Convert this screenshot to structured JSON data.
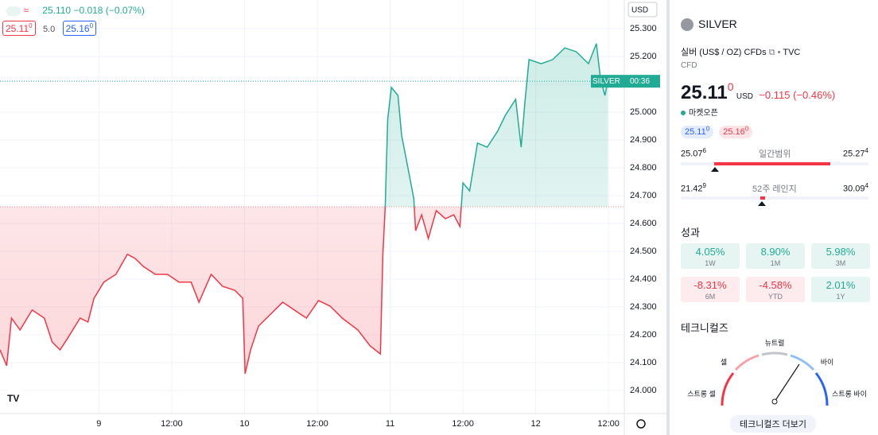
{
  "header": {
    "quote": "25.110",
    "change": "−0.018 (−0.07%)",
    "bid": {
      "main": "25.11",
      "sup": "0"
    },
    "spread": "5.0",
    "ask": {
      "main": "25.16",
      "sup": "0"
    },
    "currency": "USD"
  },
  "chart_data": {
    "type": "line",
    "baseline": 24.66,
    "x": [
      -16.3,
      -15.2,
      -14.4,
      -13.0,
      -11.0,
      -9.0,
      -7.7,
      -6.4,
      -5.1,
      -3.1,
      -1.8,
      -0.8,
      0.8,
      2.8,
      4.7,
      6.0,
      7.3,
      9.3,
      11.3,
      13.2,
      15.2,
      16.5,
      18.5,
      20.4,
      22.4,
      23.7,
      24.1,
      25.0,
      26.3,
      28.3,
      30.3,
      32.2,
      34.2,
      36.2,
      38.1,
      40.1,
      42.7,
      44.7,
      46.4,
      46.8,
      47.2,
      47.6,
      48.2,
      49.3,
      49.9,
      50.9,
      51.9,
      52.2,
      53.2,
      54.3,
      55.6,
      57.1,
      58.5,
      59.5,
      60.0,
      61.1,
      62.4,
      64.0,
      65.7,
      67.0,
      68.7,
      69.6,
      70.2,
      70.9,
      72.9,
      74.8,
      76.8,
      78.7,
      80.7,
      82.0,
      82.7,
      83.4,
      83.9
    ],
    "series": [
      {
        "name": "SILVER",
        "color_up": "#22ab94",
        "color_down": "#f23645",
        "values": [
          24.146,
          24.089,
          24.26,
          24.217,
          24.289,
          24.26,
          24.174,
          24.146,
          24.189,
          24.26,
          24.246,
          24.331,
          24.389,
          24.417,
          24.489,
          24.474,
          24.446,
          24.417,
          24.417,
          24.389,
          24.389,
          24.317,
          24.417,
          24.374,
          24.36,
          24.331,
          24.06,
          24.146,
          24.231,
          24.274,
          24.317,
          24.289,
          24.26,
          24.323,
          24.303,
          24.26,
          24.217,
          24.16,
          24.131,
          24.489,
          24.66,
          24.974,
          25.089,
          25.06,
          24.917,
          24.803,
          24.689,
          24.574,
          24.631,
          24.546,
          24.646,
          24.617,
          24.631,
          24.589,
          24.746,
          24.717,
          24.889,
          24.874,
          24.931,
          24.989,
          25.046,
          24.874,
          25.031,
          25.189,
          25.174,
          25.189,
          25.231,
          25.217,
          25.174,
          25.246,
          25.117,
          25.06,
          25.111
        ]
      }
    ],
    "xlim": [
      -16.3,
      86.6
    ],
    "ylim": [
      23.917,
      25.403
    ],
    "xticks": [
      {
        "value": 0,
        "label": "9"
      },
      {
        "value": 12,
        "label": "12:00"
      },
      {
        "value": 24,
        "label": "10"
      },
      {
        "value": 36,
        "label": "12:00"
      },
      {
        "value": 48,
        "label": "11"
      },
      {
        "value": 60,
        "label": "12:00"
      },
      {
        "value": 72,
        "label": "12"
      },
      {
        "value": 84,
        "label": "12:00"
      }
    ],
    "yticks": [
      {
        "value": 24.0,
        "label": "24.000"
      },
      {
        "value": 24.1,
        "label": "24.100"
      },
      {
        "value": 24.2,
        "label": "24.200"
      },
      {
        "value": 24.3,
        "label": "24.300"
      },
      {
        "value": 24.4,
        "label": "24.400"
      },
      {
        "value": 24.5,
        "label": "24.500"
      },
      {
        "value": 24.6,
        "label": "24.600"
      },
      {
        "value": 24.7,
        "label": "24.700"
      },
      {
        "value": 24.8,
        "label": "24.800"
      },
      {
        "value": 24.9,
        "label": "24.900"
      },
      {
        "value": 25.0,
        "label": "25.000"
      },
      {
        "value": 25.1,
        "label": "25.100"
      },
      {
        "value": 25.2,
        "label": "25.200"
      },
      {
        "value": 25.3,
        "label": "25.300"
      }
    ],
    "grid": true,
    "last_label": "SILVER",
    "countdown": "00:36",
    "currency": "USD"
  },
  "panel": {
    "symbol": "SILVER",
    "description": "실버 (US$ / OZ) CFDs",
    "exchange": "TVC",
    "kind": "CFD",
    "price": {
      "main": "25.11",
      "sup": "0"
    },
    "currency": "USD",
    "change": "−0.115 (−0.46%)",
    "status": "마켓오픈",
    "bid": {
      "main": "25.11",
      "sup": "0"
    },
    "ask": {
      "main": "25.16",
      "sup": "0"
    },
    "day_range": {
      "low": {
        "main": "25.07",
        "sup": "6"
      },
      "label": "일간범위",
      "high": {
        "main": "25.27",
        "sup": "4"
      }
    },
    "year_range": {
      "low": {
        "main": "21.42",
        "sup": "9"
      },
      "label": "52주 레인지",
      "high": {
        "main": "30.09",
        "sup": "4"
      }
    },
    "performance_title": "성과",
    "performance": [
      {
        "value": "4.05%",
        "period": "1W",
        "up": true
      },
      {
        "value": "8.90%",
        "period": "1M",
        "up": true
      },
      {
        "value": "5.98%",
        "period": "3M",
        "up": true
      },
      {
        "value": "-8.31%",
        "period": "6M",
        "up": false
      },
      {
        "value": "-4.58%",
        "period": "YTD",
        "up": false
      },
      {
        "value": "2.01%",
        "period": "1Y",
        "up": true
      }
    ],
    "technicals_title": "테크니컬즈",
    "gauge": {
      "neutral": "뉴트럴",
      "sell": "셀",
      "buy": "바이",
      "strong_sell": "스트롱 셀",
      "strong_buy": "스트롱 바이"
    },
    "more": "테크니컬즈 더보기"
  }
}
